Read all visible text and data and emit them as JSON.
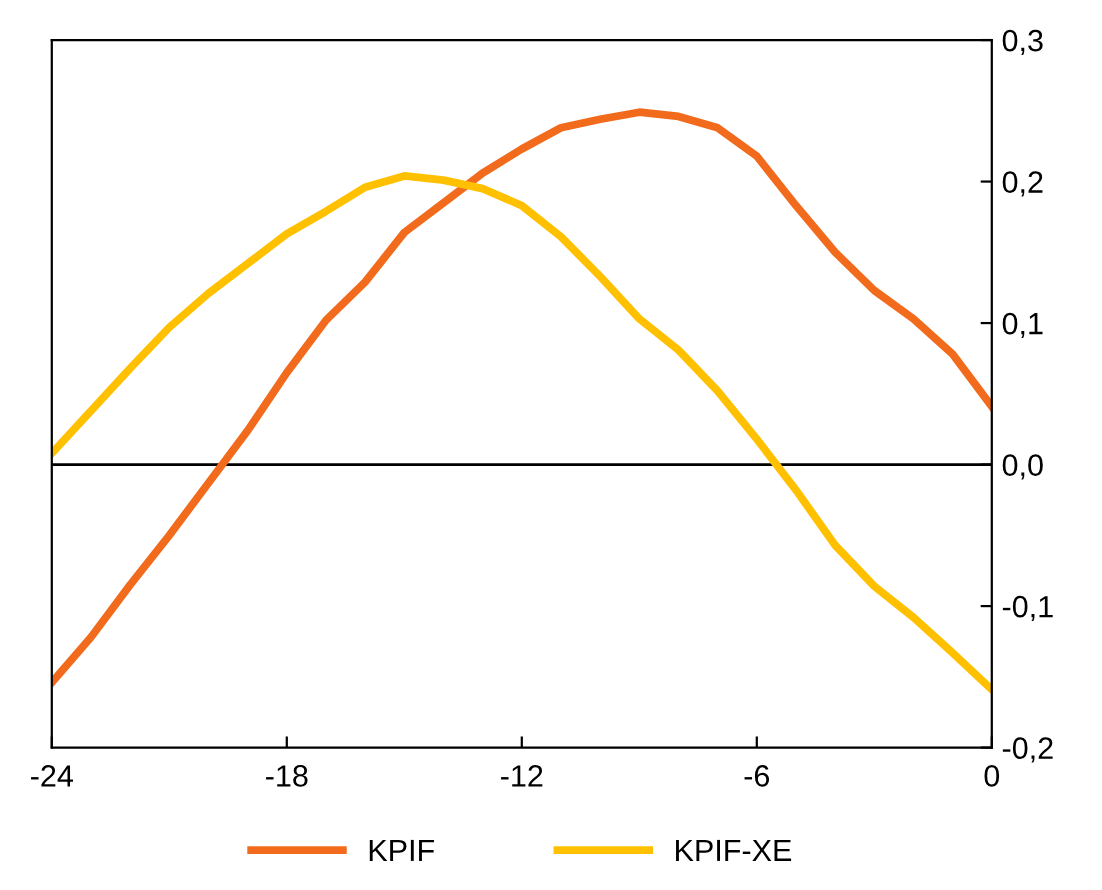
{
  "chart_data": {
    "type": "line",
    "x": [
      -24,
      -23,
      -22,
      -21,
      -20,
      -19,
      -18,
      -17,
      -16,
      -15,
      -14,
      -13,
      -12,
      -11,
      -10,
      -9,
      -8,
      -7,
      -6,
      -5,
      -4,
      -3,
      -2,
      -1,
      0
    ],
    "series": [
      {
        "name": "KPIF",
        "color": "#f26b1d",
        "values": [
          -0.154,
          -0.122,
          -0.085,
          -0.05,
          -0.013,
          0.024,
          0.065,
          0.102,
          0.129,
          0.164,
          0.185,
          0.206,
          0.223,
          0.238,
          0.244,
          0.249,
          0.246,
          0.238,
          0.218,
          0.183,
          0.15,
          0.123,
          0.103,
          0.078,
          0.041
        ]
      },
      {
        "name": "KPIF-XE",
        "color": "#ffc000",
        "values": [
          0.008,
          0.038,
          0.068,
          0.097,
          0.121,
          0.142,
          0.163,
          0.179,
          0.196,
          0.204,
          0.201,
          0.195,
          0.183,
          0.161,
          0.133,
          0.103,
          0.081,
          0.052,
          0.018,
          -0.018,
          -0.057,
          -0.086,
          -0.108,
          -0.133,
          -0.159
        ]
      }
    ],
    "xlim": [
      -24,
      0
    ],
    "xticks": [
      -24,
      -18,
      -12,
      -6,
      0
    ],
    "ylim": [
      -0.2,
      0.3
    ],
    "yticks": [
      {
        "value": -0.2,
        "label": "-0,2"
      },
      {
        "value": -0.1,
        "label": "-0,1"
      },
      {
        "value": 0.0,
        "label": "0,0"
      },
      {
        "value": 0.1,
        "label": "0,1"
      },
      {
        "value": 0.2,
        "label": "0,2"
      },
      {
        "value": 0.3,
        "label": "0,3"
      }
    ],
    "ref_lines": [
      {
        "axis": "y",
        "value": 0,
        "color": "#000000"
      }
    ],
    "legend": "bottom",
    "grid": false,
    "marker": "none",
    "line_style": "solid"
  }
}
